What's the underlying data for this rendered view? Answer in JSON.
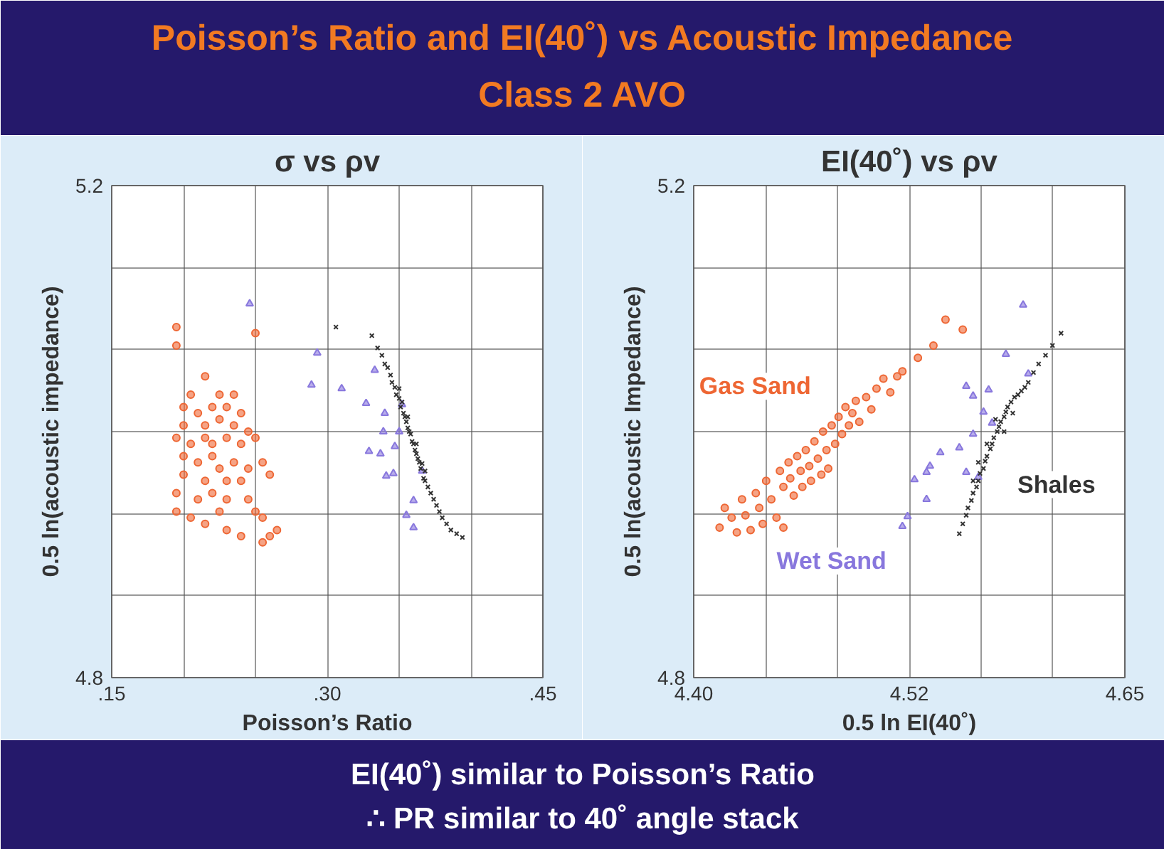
{
  "chart_data": [
    {
      "type": "other",
      "title": "Poisson’s Ratio and EI(40˚) vs Acoustic Impedance",
      "subtitle": "Class 2 AVO",
      "annotations": [
        "EI(40˚) similar to Poisson’s Ratio",
        "∴ PR similar to 40˚ angle stack"
      ]
    },
    {
      "type": "scatter",
      "title": "σ vs ρv",
      "xlabel": "Poisson’s Ratio",
      "ylabel": "0.5 ln(acoustic impedance)",
      "xlim": [
        0.15,
        0.45
      ],
      "ylim": [
        4.8,
        5.2
      ],
      "xticks": [
        {
          "value": 0.15,
          "label": ".15"
        },
        {
          "value": 0.2,
          "label": null
        },
        {
          "value": 0.25,
          "label": null
        },
        {
          "value": 0.3,
          "label": ".30"
        },
        {
          "value": 0.35,
          "label": null
        },
        {
          "value": 0.4,
          "label": null
        },
        {
          "value": 0.45,
          "label": ".45"
        }
      ],
      "yticks": [
        {
          "value": 4.8,
          "label": "4.8"
        },
        {
          "value": 4.8667,
          "label": null
        },
        {
          "value": 4.9333,
          "label": null
        },
        {
          "value": 5.0,
          "label": null
        },
        {
          "value": 5.0667,
          "label": null
        },
        {
          "value": 5.1333,
          "label": null
        },
        {
          "value": 5.2,
          "label": "5.2"
        }
      ],
      "grid": true,
      "series": [
        {
          "color": "#ee6633",
          "marker": "circle",
          "x": [
            0.195,
            0.195,
            0.25,
            0.215,
            0.205,
            0.225,
            0.235,
            0.2,
            0.21,
            0.22,
            0.23,
            0.24,
            0.2,
            0.215,
            0.225,
            0.235,
            0.245,
            0.195,
            0.205,
            0.215,
            0.22,
            0.23,
            0.24,
            0.25,
            0.2,
            0.21,
            0.22,
            0.225,
            0.235,
            0.245,
            0.255,
            0.2,
            0.215,
            0.23,
            0.24,
            0.26,
            0.195,
            0.21,
            0.22,
            0.23,
            0.245,
            0.25,
            0.255,
            0.205,
            0.215,
            0.225,
            0.23,
            0.24,
            0.26,
            0.265,
            0.255,
            0.195
          ],
          "values": [
            5.085,
            5.07,
            5.08,
            5.045,
            5.03,
            5.03,
            5.03,
            5.02,
            5.015,
            5.02,
            5.02,
            5.015,
            5.005,
            5.005,
            5.01,
            5.005,
            5.0,
            4.995,
            4.99,
            4.995,
            4.99,
            4.995,
            4.99,
            4.995,
            4.98,
            4.975,
            4.98,
            4.97,
            4.975,
            4.97,
            4.975,
            4.965,
            4.96,
            4.96,
            4.96,
            4.965,
            4.95,
            4.945,
            4.95,
            4.945,
            4.945,
            4.935,
            4.93,
            4.93,
            4.925,
            4.935,
            4.92,
            4.915,
            4.915,
            4.92,
            4.91,
            4.935
          ]
        },
        {
          "color": "#8877dd",
          "marker": "triangle",
          "x": [
            0.246,
            0.293,
            0.289,
            0.31,
            0.327,
            0.333,
            0.34,
            0.329,
            0.337,
            0.341,
            0.346,
            0.347,
            0.35,
            0.339,
            0.366,
            0.36,
            0.355,
            0.36,
            0.352
          ],
          "values": [
            5.104,
            5.064,
            5.038,
            5.035,
            5.023,
            5.05,
            5.015,
            4.984,
            4.982,
            4.964,
            4.966,
            4.988,
            5.0,
            5.0,
            4.968,
            4.944,
            4.932,
            4.922,
            5.022
          ]
        },
        {
          "color": "#333333",
          "marker": "cross",
          "x": [
            0.331,
            0.335,
            0.338,
            0.34,
            0.342,
            0.344,
            0.345,
            0.347,
            0.348,
            0.35,
            0.351,
            0.352,
            0.353,
            0.354,
            0.355,
            0.356,
            0.357,
            0.358,
            0.359,
            0.36,
            0.361,
            0.362,
            0.363,
            0.364,
            0.365,
            0.366,
            0.367,
            0.368,
            0.37,
            0.372,
            0.374,
            0.376,
            0.378,
            0.38,
            0.383,
            0.386,
            0.39,
            0.394,
            0.35,
            0.356,
            0.362,
            0.368,
            0.306
          ],
          "values": [
            5.078,
            5.068,
            5.062,
            5.055,
            5.052,
            5.046,
            5.04,
            5.036,
            5.03,
            5.027,
            5.02,
            5.024,
            5.015,
            5.012,
            5.008,
            5.003,
            5.0,
            4.998,
            4.992,
            4.99,
            4.985,
            4.982,
            4.978,
            4.975,
            4.97,
            4.974,
            4.962,
            4.96,
            4.955,
            4.95,
            4.945,
            4.94,
            4.935,
            4.93,
            4.925,
            4.92,
            4.917,
            4.914,
            5.035,
            5.012,
            4.99,
            4.968,
            5.085
          ]
        }
      ]
    },
    {
      "type": "scatter",
      "title": "EI(40˚) vs ρv",
      "xlabel": "0.5 ln EI(40˚)",
      "ylabel": "0.5 ln(acoustic Impedance)",
      "xlim": [
        4.4,
        4.65
      ],
      "ylim": [
        4.8,
        5.2
      ],
      "xticks": [
        {
          "value": 4.4,
          "label": "4.40"
        },
        {
          "value": 4.4417,
          "label": null
        },
        {
          "value": 4.4833,
          "label": null
        },
        {
          "value": 4.525,
          "label": "4.52"
        },
        {
          "value": 4.5667,
          "label": null
        },
        {
          "value": 4.6083,
          "label": null
        },
        {
          "value": 4.65,
          "label": "4.65"
        }
      ],
      "yticks": [
        {
          "value": 4.8,
          "label": "4.8"
        },
        {
          "value": 4.8667,
          "label": null
        },
        {
          "value": 4.9333,
          "label": null
        },
        {
          "value": 5.0,
          "label": null
        },
        {
          "value": 5.0667,
          "label": null
        },
        {
          "value": 5.1333,
          "label": null
        },
        {
          "value": 5.2,
          "label": "5.2"
        }
      ],
      "grid": true,
      "series": [
        {
          "name": "Gas Sand",
          "color": "#ee6633",
          "marker": "circle",
          "x": [
            4.415,
            4.418,
            4.422,
            4.425,
            4.428,
            4.43,
            4.433,
            4.436,
            4.438,
            4.44,
            4.442,
            4.445,
            4.448,
            4.45,
            4.452,
            4.452,
            4.455,
            4.456,
            4.458,
            4.46,
            4.462,
            4.463,
            4.465,
            4.467,
            4.468,
            4.47,
            4.472,
            4.474,
            4.475,
            4.477,
            4.478,
            4.48,
            4.482,
            4.484,
            4.486,
            4.488,
            4.49,
            4.492,
            4.494,
            4.496,
            4.5,
            4.503,
            4.506,
            4.51,
            4.514,
            4.518,
            4.521,
            4.53,
            4.539,
            4.546,
            4.556
          ],
          "values": [
            4.922,
            4.938,
            4.93,
            4.918,
            4.945,
            4.932,
            4.92,
            4.95,
            4.938,
            4.925,
            4.96,
            4.945,
            4.93,
            4.968,
            4.955,
            4.922,
            4.975,
            4.962,
            4.948,
            4.98,
            4.968,
            4.955,
            4.985,
            4.972,
            4.96,
            4.992,
            4.978,
            4.965,
            5.0,
            4.985,
            4.97,
            5.005,
            4.99,
            5.012,
            4.998,
            5.02,
            5.005,
            5.015,
            5.025,
            5.008,
            5.028,
            5.018,
            5.035,
            5.043,
            5.032,
            5.045,
            5.049,
            5.06,
            5.07,
            5.091,
            5.083
          ]
        },
        {
          "name": "Wet Sand",
          "color": "#8877dd",
          "marker": "triangle",
          "x": [
            4.521,
            4.524,
            4.528,
            4.535,
            4.537,
            4.535,
            4.543,
            4.554,
            4.558,
            4.558,
            4.562,
            4.562,
            4.568,
            4.573,
            4.581,
            4.591,
            4.594,
            4.571,
            4.565
          ],
          "values": [
            4.923,
            4.931,
            4.961,
            4.967,
            4.972,
            4.945,
            4.983,
            4.987,
            4.967,
            5.037,
            5.029,
            4.998,
            5.016,
            5.007,
            5.063,
            5.103,
            5.047,
            5.034,
            4.963
          ]
        },
        {
          "name": "Shales",
          "color": "#333333",
          "marker": "cross",
          "x": [
            4.554,
            4.556,
            4.558,
            4.559,
            4.561,
            4.562,
            4.564,
            4.565,
            4.566,
            4.568,
            4.569,
            4.57,
            4.572,
            4.573,
            4.574,
            4.576,
            4.577,
            4.578,
            4.58,
            4.581,
            4.582,
            4.584,
            4.586,
            4.588,
            4.59,
            4.592,
            4.594,
            4.597,
            4.6,
            4.604,
            4.608,
            4.613,
            4.575,
            4.58,
            4.585,
            4.57,
            4.565,
            4.562
          ],
          "values": [
            4.917,
            4.925,
            4.932,
            4.938,
            4.944,
            4.95,
            4.955,
            4.96,
            4.966,
            4.97,
            4.976,
            4.98,
            4.986,
            4.99,
            4.995,
            5.0,
            5.004,
            5.008,
            5.012,
            5.016,
            5.02,
            5.024,
            5.028,
            5.03,
            5.033,
            5.036,
            5.04,
            5.048,
            5.055,
            5.062,
            5.07,
            5.08,
            5.01,
            5.0,
            5.015,
            4.99,
            4.975,
            4.96
          ]
        }
      ]
    }
  ]
}
